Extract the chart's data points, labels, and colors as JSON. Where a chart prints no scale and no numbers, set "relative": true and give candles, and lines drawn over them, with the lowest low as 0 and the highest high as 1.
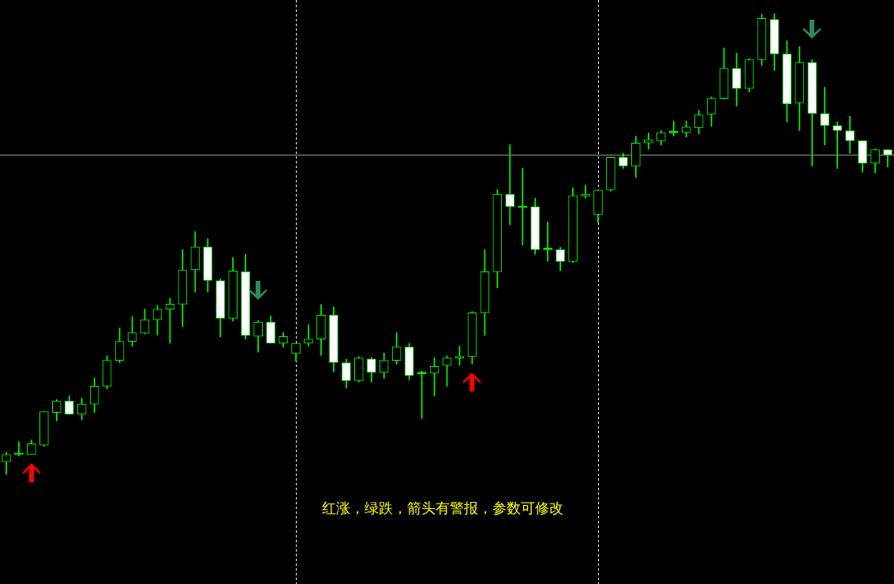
{
  "chart_data": {
    "type": "candlestick",
    "relative": true,
    "categories": [
      null,
      null,
      null,
      null,
      null,
      null,
      null,
      null,
      null,
      null,
      null,
      null,
      null,
      null,
      null,
      null,
      null,
      null,
      null,
      null,
      null,
      null,
      null,
      null,
      null,
      null,
      null,
      null,
      null,
      null,
      null,
      null,
      null,
      null,
      null,
      null,
      null,
      null,
      null,
      null,
      null,
      null,
      null,
      null,
      null,
      null,
      null,
      null,
      null,
      null,
      null,
      null,
      null,
      null,
      null,
      null,
      null,
      null,
      null,
      null,
      null,
      null,
      null,
      null,
      null,
      null,
      null,
      null,
      null,
      null,
      null
    ],
    "ohlc": [
      [
        0.028,
        0.049,
        0,
        0.044
      ],
      [
        0.044,
        0.072,
        0.041,
        0.044
      ],
      [
        0.044,
        0.075,
        0.044,
        0.067
      ],
      [
        0.064,
        0.137,
        0.062,
        0.137
      ],
      [
        0.135,
        0.163,
        0.117,
        0.16
      ],
      [
        0.16,
        0.171,
        0.131,
        0.131
      ],
      [
        0.131,
        0.166,
        0.119,
        0.153
      ],
      [
        0.153,
        0.21,
        0.135,
        0.192
      ],
      [
        0.192,
        0.258,
        0.186,
        0.248
      ],
      [
        0.248,
        0.318,
        0.243,
        0.289
      ],
      [
        0.289,
        0.343,
        0.279,
        0.308
      ],
      [
        0.307,
        0.359,
        0.305,
        0.336
      ],
      [
        0.336,
        0.367,
        0.303,
        0.359
      ],
      [
        0.359,
        0.383,
        0.285,
        0.37
      ],
      [
        0.37,
        0.488,
        0.321,
        0.444
      ],
      [
        0.444,
        0.527,
        0.396,
        0.494
      ],
      [
        0.494,
        0.512,
        0.396,
        0.421
      ],
      [
        0.421,
        0.424,
        0.299,
        0.339
      ],
      [
        0.339,
        0.471,
        0.333,
        0.442
      ],
      [
        0.44,
        0.478,
        0.294,
        0.302
      ],
      [
        0.3,
        0.334,
        0.266,
        0.331
      ],
      [
        0.331,
        0.344,
        0.285,
        0.285
      ],
      [
        0.285,
        0.308,
        0.276,
        0.3
      ],
      [
        0.263,
        0.285,
        0.246,
        0.285
      ],
      [
        0.285,
        0.325,
        0.279,
        0.294
      ],
      [
        0.294,
        0.369,
        0.259,
        0.346
      ],
      [
        0.346,
        0.364,
        0.223,
        0.243
      ],
      [
        0.243,
        0.25,
        0.188,
        0.204
      ],
      [
        0.204,
        0.256,
        0.201,
        0.253
      ],
      [
        0.251,
        0.254,
        0.201,
        0.222
      ],
      [
        0.222,
        0.264,
        0.209,
        0.248
      ],
      [
        0.248,
        0.308,
        0.24,
        0.277
      ],
      [
        0.277,
        0.285,
        0.206,
        0.215
      ],
      [
        0.219,
        0.225,
        0.122,
        0.219
      ],
      [
        0.22,
        0.254,
        0.171,
        0.235
      ],
      [
        0.237,
        0.258,
        0.192,
        0.253
      ],
      [
        0.253,
        0.279,
        0.237,
        0.256
      ],
      [
        0.256,
        0.354,
        0.24,
        0.351
      ],
      [
        0.351,
        0.488,
        0.302,
        0.44
      ],
      [
        0.44,
        0.618,
        0.405,
        0.608
      ],
      [
        0.608,
        0.716,
        0.542,
        0.581
      ],
      [
        0.579,
        0.664,
        0.498,
        0.579
      ],
      [
        0.581,
        0.599,
        0.478,
        0.488
      ],
      [
        0.488,
        0.548,
        0.463,
        0.488
      ],
      [
        0.488,
        0.493,
        0.442,
        0.462
      ],
      [
        0.462,
        0.622,
        0.46,
        0.605
      ],
      [
        0.604,
        0.628,
        0.6,
        0.608
      ],
      [
        0.564,
        0.618,
        0.546,
        0.617
      ],
      [
        0.618,
        0.688,
        0.615,
        0.688
      ],
      [
        0.688,
        0.697,
        0.664,
        0.669
      ],
      [
        0.669,
        0.734,
        0.644,
        0.719
      ],
      [
        0.719,
        0.741,
        0.706,
        0.726
      ],
      [
        0.724,
        0.746,
        0.715,
        0.742
      ],
      [
        0.741,
        0.767,
        0.734,
        0.741
      ],
      [
        0.742,
        0.767,
        0.732,
        0.754
      ],
      [
        0.752,
        0.79,
        0.739,
        0.78
      ],
      [
        0.781,
        0.819,
        0.755,
        0.816
      ],
      [
        0.816,
        0.925,
        0.814,
        0.881
      ],
      [
        0.881,
        0.914,
        0.799,
        0.837
      ],
      [
        0.837,
        0.902,
        0.83,
        0.9
      ],
      [
        0.9,
        0.998,
        0.887,
        0.989
      ],
      [
        0.987,
        1,
        0.876,
        0.912
      ],
      [
        0.912,
        0.941,
        0.765,
        0.804
      ],
      [
        0.806,
        0.928,
        0.746,
        0.894
      ],
      [
        0.894,
        0.9,
        0.669,
        0.783
      ],
      [
        0.783,
        0.84,
        0.715,
        0.757
      ],
      [
        0.757,
        0.765,
        0.664,
        0.746
      ],
      [
        0.746,
        0.777,
        0.697,
        0.724
      ],
      [
        0.724,
        0.724,
        0.656,
        0.675
      ],
      [
        0.675,
        0.706,
        0.654,
        0.705
      ],
      [
        0.705,
        0.705,
        0.667,
        0.693
      ]
    ],
    "ref_lines": [
      {
        "axis": "y",
        "value": 0.693,
        "color": "#8a9a8a"
      }
    ],
    "annotations": [
      "红涨，绿跌，箭头有警报，参数可修改"
    ]
  }
}
